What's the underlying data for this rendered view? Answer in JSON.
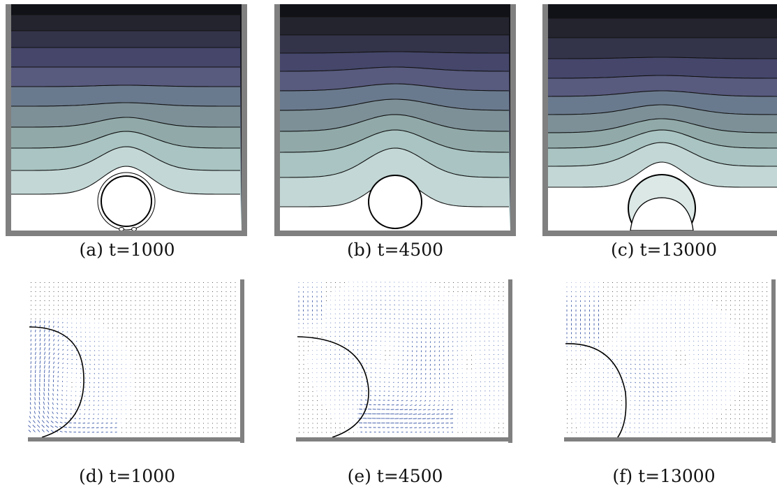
{
  "figure": {
    "panels": [
      {
        "id": "a",
        "caption": "(a) t=1000"
      },
      {
        "id": "b",
        "caption": "(b) t=4500"
      },
      {
        "id": "c",
        "caption": "(c) t=13000"
      },
      {
        "id": "d",
        "caption": "(d) t=1000"
      },
      {
        "id": "e",
        "caption": "(e) t=4500"
      },
      {
        "id": "f",
        "caption": "(f) t=13000"
      }
    ]
  },
  "colors": {
    "wall": "#808080",
    "contour_line": "#111111",
    "bubble_line": "#000000",
    "vector": "#3d5aa8",
    "contour_bands": [
      "#111218",
      "#23242e",
      "#33344a",
      "#45466a",
      "#585a7e",
      "#6a7a8e",
      "#7d9098",
      "#91aaa9",
      "#a9c4c2",
      "#c3d8d6",
      "#dbe8e6"
    ]
  }
}
